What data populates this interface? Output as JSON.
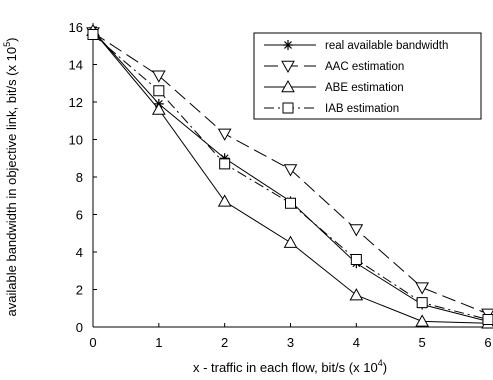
{
  "chart_data": {
    "type": "line",
    "xlabel": "x - traffic in each flow, bit/s (x 10",
    "xlabel_exp": "4",
    "xlabel_end": ")",
    "ylabel": "available bandwidth in objective link, bit/s (x 10",
    "ylabel_exp": "5",
    "ylabel_end": ")",
    "xlim": [
      0,
      6
    ],
    "ylim": [
      0,
      16
    ],
    "x_ticks": [
      0,
      1,
      2,
      3,
      4,
      5,
      6
    ],
    "y_ticks": [
      0,
      2,
      4,
      6,
      8,
      10,
      12,
      14,
      16
    ],
    "grid": false,
    "legend_position": "top-right",
    "x": [
      0,
      1,
      2,
      3,
      4,
      5,
      6
    ],
    "series": [
      {
        "name": "real available bandwidth",
        "values": [
          15.8,
          11.9,
          9.0,
          6.7,
          3.4,
          1.2,
          0.3
        ],
        "marker": "asterisk",
        "dash": "solid"
      },
      {
        "name": "AAC estimation",
        "values": [
          15.7,
          13.4,
          10.3,
          8.4,
          5.2,
          2.1,
          0.7
        ],
        "marker": "triangle-down",
        "dash": "long-dash"
      },
      {
        "name": "ABE estimation",
        "values": [
          15.8,
          11.6,
          6.7,
          4.5,
          1.7,
          0.3,
          0.2
        ],
        "marker": "triangle-up",
        "dash": "solid"
      },
      {
        "name": "IAB estimation",
        "values": [
          15.6,
          12.6,
          8.7,
          6.6,
          3.6,
          1.3,
          0.4
        ],
        "marker": "square",
        "dash": "dash-dot"
      }
    ]
  }
}
